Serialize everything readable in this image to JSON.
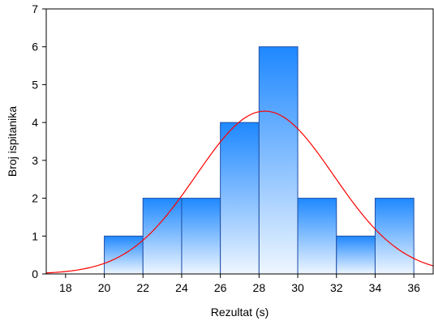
{
  "chart_data": {
    "type": "bar",
    "title": "",
    "xlabel": "Rezultat (s)",
    "ylabel": "Broj ispitanika",
    "xlim": [
      17,
      37
    ],
    "ylim": [
      0,
      7
    ],
    "xticks": [
      18,
      20,
      22,
      24,
      26,
      28,
      30,
      32,
      34,
      36
    ],
    "yticks": [
      0,
      1,
      2,
      3,
      4,
      5,
      6,
      7
    ],
    "bins": [
      {
        "from": 20,
        "to": 22,
        "count": 1
      },
      {
        "from": 22,
        "to": 24,
        "count": 2
      },
      {
        "from": 24,
        "to": 26,
        "count": 2
      },
      {
        "from": 26,
        "to": 28,
        "count": 4
      },
      {
        "from": 28,
        "to": 30,
        "count": 6
      },
      {
        "from": 30,
        "to": 32,
        "count": 2
      },
      {
        "from": 32,
        "to": 34,
        "count": 1
      },
      {
        "from": 34,
        "to": 36,
        "count": 2
      }
    ],
    "normal_curve": {
      "mean": 28.3,
      "sd": 3.55,
      "peak": 4.3
    },
    "grid": false,
    "colors": {
      "bar_top": "#1e88ff",
      "bar_bottom": "#eef6ff",
      "bar_edge": "#1f4fa8",
      "curve": "#ff0000"
    }
  }
}
